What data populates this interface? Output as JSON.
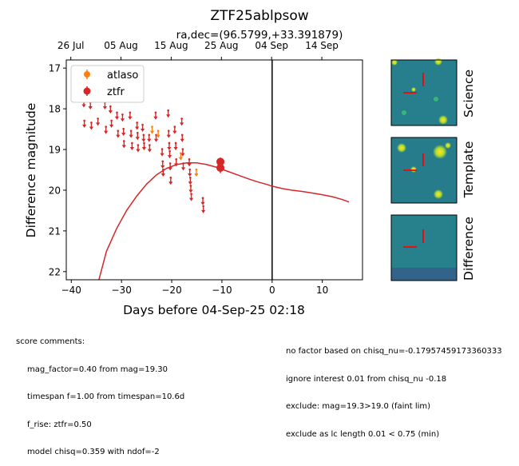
{
  "chart_data": {
    "type": "scatter",
    "title": "ZTF25ablpsow",
    "subtitle": "ra,dec=(96.5799,+33.391879)",
    "xlabel": "Days before 04-Sep-25 02:18",
    "ylabel": "Difference magnitude",
    "xlim": [
      -41,
      18
    ],
    "ylim": [
      22.2,
      16.8
    ],
    "y_inverted": true,
    "x_ticks": [
      -40,
      -30,
      -20,
      -10,
      0,
      10
    ],
    "x_tick_labels": [
      "−40",
      "−30",
      "−20",
      "−10",
      "0",
      "10"
    ],
    "y_ticks": [
      17,
      18,
      19,
      20,
      21,
      22
    ],
    "top_axis_ticks": [
      {
        "label": "26 Jul",
        "x": -40.1
      },
      {
        "label": "05 Aug",
        "x": -30.1
      },
      {
        "label": "15 Aug",
        "x": -20.1
      },
      {
        "label": "25 Aug",
        "x": -10.1
      },
      {
        "label": "04 Sep",
        "x": -0.1
      },
      {
        "label": "14 Sep",
        "x": 9.9
      }
    ],
    "vertical_line_x": 0,
    "legend": {
      "placement": "upper-left",
      "entries": [
        {
          "label": "atlaso",
          "color": "#ff7f0e"
        },
        {
          "label": "ztfr",
          "color": "#d62728"
        }
      ]
    },
    "series": [
      {
        "name": "ztfr",
        "kind": "upper_limits",
        "color": "#d62728",
        "points": [
          [
            -37.5,
            17.85
          ],
          [
            -37.4,
            18.35
          ],
          [
            -36.2,
            17.9
          ],
          [
            -36.0,
            18.4
          ],
          [
            -34.9,
            17.7
          ],
          [
            -34.7,
            18.3
          ],
          [
            -33.3,
            17.9
          ],
          [
            -33.1,
            18.5
          ],
          [
            -32.2,
            18.0
          ],
          [
            -32.0,
            18.35
          ],
          [
            -30.9,
            18.15
          ],
          [
            -30.7,
            18.6
          ],
          [
            -29.8,
            18.2
          ],
          [
            -29.6,
            18.55
          ],
          [
            -29.5,
            18.85
          ],
          [
            -28.3,
            18.15
          ],
          [
            -28.1,
            18.6
          ],
          [
            -27.9,
            18.9
          ],
          [
            -26.9,
            18.4
          ],
          [
            -26.8,
            18.65
          ],
          [
            -26.7,
            18.95
          ],
          [
            -25.8,
            18.45
          ],
          [
            -25.6,
            18.7
          ],
          [
            -25.5,
            18.9
          ],
          [
            -24.5,
            18.7
          ],
          [
            -24.4,
            18.95
          ],
          [
            -23.2,
            18.15
          ],
          [
            -23.1,
            18.7
          ],
          [
            -21.9,
            19.05
          ],
          [
            -21.8,
            19.35
          ],
          [
            -21.7,
            19.55
          ],
          [
            -20.7,
            18.1
          ],
          [
            -20.6,
            18.6
          ],
          [
            -20.5,
            18.9
          ],
          [
            -20.4,
            19.1
          ],
          [
            -20.3,
            19.4
          ],
          [
            -20.2,
            19.75
          ],
          [
            -19.4,
            18.5
          ],
          [
            -19.2,
            18.9
          ],
          [
            -19.1,
            19.3
          ],
          [
            -18.0,
            18.3
          ],
          [
            -17.9,
            18.7
          ],
          [
            -17.8,
            19.05
          ],
          [
            -17.7,
            19.4
          ],
          [
            -16.5,
            19.3
          ],
          [
            -16.4,
            19.55
          ],
          [
            -16.3,
            19.75
          ],
          [
            -16.2,
            19.95
          ],
          [
            -16.1,
            20.15
          ],
          [
            -13.8,
            20.25
          ],
          [
            -13.7,
            20.45
          ]
        ]
      },
      {
        "name": "ztfr",
        "kind": "detection",
        "color": "#d62728",
        "points": [
          {
            "x": -10.3,
            "y": 19.3,
            "err": 0.1
          },
          {
            "x": -10.3,
            "y": 19.45,
            "err": 0.13
          }
        ]
      },
      {
        "name": "atlaso",
        "kind": "upper_limits",
        "color": "#ff7f0e",
        "points": [
          [
            -23.9,
            18.5
          ],
          [
            -22.7,
            18.6
          ],
          [
            -18.2,
            19.15
          ],
          [
            -15.1,
            19.55
          ]
        ]
      },
      {
        "name": "",
        "kind": "model_curve",
        "color": "#d62728",
        "points": [
          [
            -34.5,
            22.2
          ],
          [
            -33,
            21.5
          ],
          [
            -31,
            20.95
          ],
          [
            -29,
            20.5
          ],
          [
            -27,
            20.15
          ],
          [
            -25,
            19.85
          ],
          [
            -23,
            19.62
          ],
          [
            -21,
            19.46
          ],
          [
            -19,
            19.37
          ],
          [
            -17,
            19.33
          ],
          [
            -15,
            19.33
          ],
          [
            -13,
            19.37
          ],
          [
            -11,
            19.44
          ],
          [
            -9,
            19.53
          ],
          [
            -7,
            19.62
          ],
          [
            -5,
            19.71
          ],
          [
            -3,
            19.79
          ],
          [
            -1,
            19.86
          ],
          [
            0,
            19.9
          ],
          [
            2,
            19.96
          ],
          [
            4,
            20.0
          ],
          [
            6,
            20.03
          ],
          [
            8,
            20.07
          ],
          [
            10,
            20.11
          ],
          [
            12,
            20.16
          ],
          [
            14,
            20.23
          ],
          [
            15.3,
            20.29
          ]
        ]
      }
    ]
  },
  "cutouts": {
    "labels": [
      "Science",
      "Template",
      "Difference"
    ]
  },
  "comments": {
    "left": [
      "score comments:",
      "mag_factor=0.40 from mag=19.30",
      "timespan f=1.00 from timespan=10.6d",
      "f_rise: ztfr=0.50",
      "model chisq=0.359 with ndof=-2"
    ],
    "right": [
      "no factor based on chisq_nu=-0.17957459173360333",
      "ignore interest 0.01 from chisq_nu -0.18",
      "exclude: mag=19.3>19.0 (faint lim)",
      "exclude as lc length 0.01 < 0.75 (min)"
    ]
  }
}
